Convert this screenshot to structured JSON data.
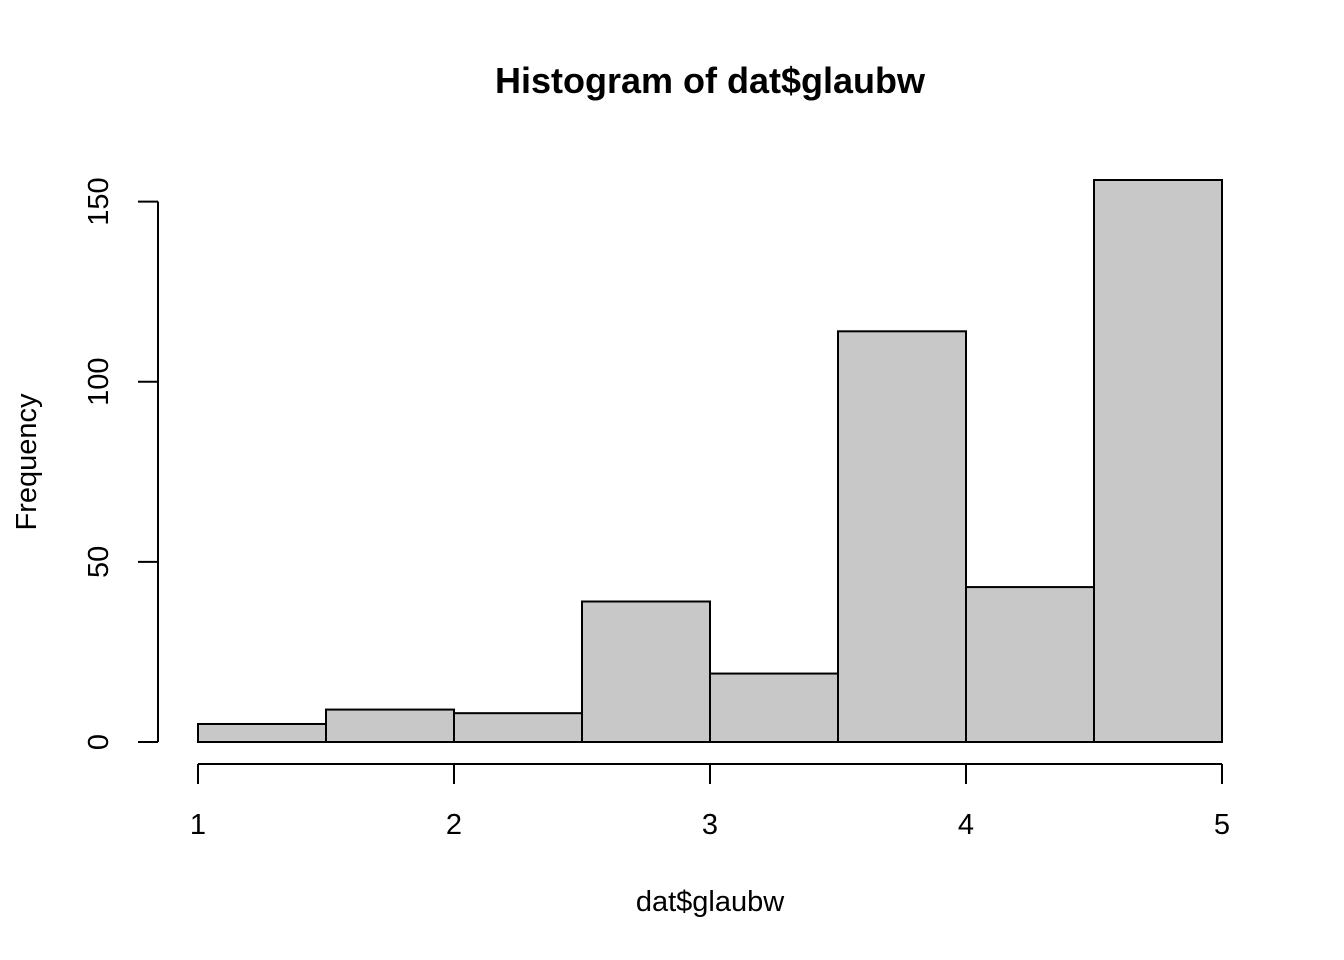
{
  "chart_data": {
    "type": "bar",
    "title": "Histogram of dat$glaubw",
    "xlabel": "dat$glaubw",
    "ylabel": "Frequency",
    "bin_edges": [
      1,
      1.5,
      2,
      2.5,
      3,
      3.5,
      4,
      4.5,
      5
    ],
    "values": [
      5,
      9,
      8,
      39,
      19,
      114,
      43,
      156
    ],
    "xlim": [
      1,
      5
    ],
    "ylim": [
      0,
      156
    ],
    "x_ticks": [
      1,
      2,
      3,
      4,
      5
    ],
    "y_ticks": [
      0,
      50,
      100,
      150
    ],
    "bar_color": "#c8c8c8",
    "grid": false,
    "legend": "none"
  }
}
